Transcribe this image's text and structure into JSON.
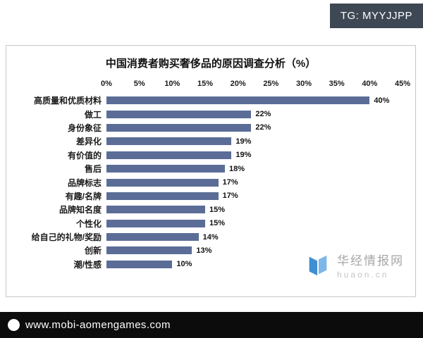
{
  "badge": {
    "text": "TG: MYYJJPP"
  },
  "chart_data": {
    "type": "bar",
    "orientation": "horizontal",
    "title": "中国消费者购买奢侈品的原因调查分析（%）",
    "categories": [
      "高质量和优质材料",
      "做工",
      "身份象征",
      "差异化",
      "有价值的",
      "售后",
      "品牌标志",
      "有趣/名牌",
      "品牌知名度",
      "个性化",
      "给自己的礼物/奖励",
      "创新",
      "潮/性感"
    ],
    "values": [
      40,
      22,
      22,
      19,
      19,
      18,
      17,
      17,
      15,
      15,
      14,
      13,
      10
    ],
    "value_suffix": "%",
    "xlim": [
      0,
      45
    ],
    "x_ticks": [
      "0%",
      "5%",
      "10%",
      "15%",
      "20%",
      "25%",
      "30%",
      "35%",
      "40%",
      "45%"
    ],
    "bar_color": "#5b6d97",
    "grid": false,
    "legend": false
  },
  "watermark": {
    "name": "华经情报网",
    "domain": "huaon.cn"
  },
  "footer": {
    "url": "www.mobi-aomengames.com"
  }
}
